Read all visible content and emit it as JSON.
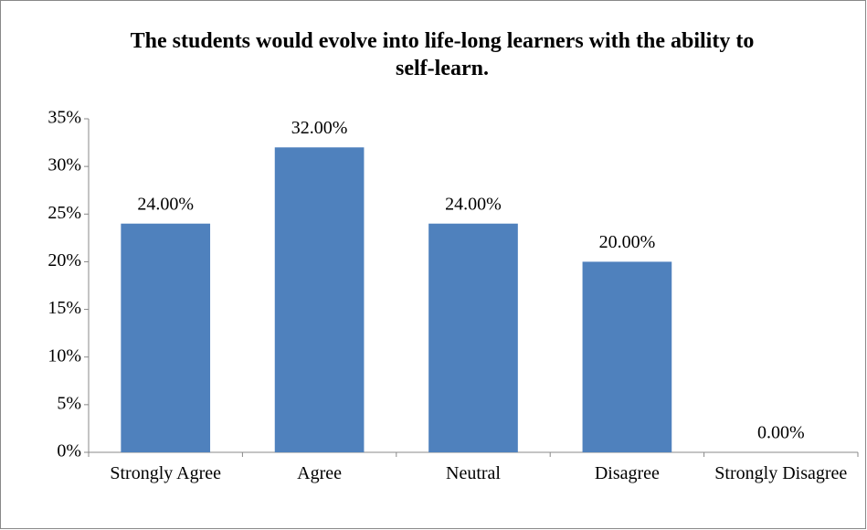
{
  "chart_data": {
    "type": "bar",
    "title": "The students would evolve into life-long learners with the ability to self-learn.",
    "categories": [
      "Strongly Agree",
      "Agree",
      "Neutral",
      "Disagree",
      "Strongly Disagree"
    ],
    "values": [
      24,
      32,
      24,
      20,
      0
    ],
    "value_labels": [
      "24.00%",
      "32.00%",
      "24.00%",
      "20.00%",
      "0.00%"
    ],
    "color": "#4f81bd",
    "ylim": [
      0,
      35
    ],
    "yticks": [
      {
        "value": 0,
        "label": "0%"
      },
      {
        "value": 5,
        "label": "5%"
      },
      {
        "value": 10,
        "label": "10%"
      },
      {
        "value": 15,
        "label": "15%"
      },
      {
        "value": 20,
        "label": "20%"
      },
      {
        "value": 25,
        "label": "25%"
      },
      {
        "value": 30,
        "label": "30%"
      },
      {
        "value": 35,
        "label": "35%"
      }
    ],
    "grid": false
  }
}
